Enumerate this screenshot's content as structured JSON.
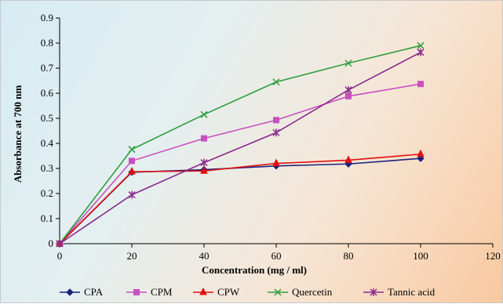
{
  "chart_data": {
    "type": "line",
    "title": "",
    "xlabel": "Concentration (mg / ml)",
    "ylabel": "Absorbance at 700 nm",
    "xlim": [
      0,
      120
    ],
    "ylim": [
      0,
      0.9
    ],
    "x_ticks": [
      "0",
      "20",
      "40",
      "60",
      "80",
      "100",
      "120"
    ],
    "y_ticks": [
      "0",
      "0.1",
      "0.2",
      "0.3",
      "0.4",
      "0.5",
      "0.6",
      "0.7",
      "0.8",
      "0.9"
    ],
    "grid": false,
    "legend_position": "bottom",
    "x": [
      0,
      20,
      40,
      60,
      80,
      100
    ],
    "series": [
      {
        "name": "CPA",
        "color": "#1a237e",
        "marker": "diamond",
        "values": [
          0,
          0.285,
          0.295,
          0.31,
          0.318,
          0.34
        ]
      },
      {
        "name": "CPM",
        "color": "#c850c0",
        "marker": "square",
        "values": [
          0,
          0.33,
          0.42,
          0.493,
          0.588,
          0.637
        ]
      },
      {
        "name": "CPW",
        "color": "#e01010",
        "marker": "triangle",
        "values": [
          0,
          0.287,
          0.29,
          0.32,
          0.333,
          0.357
        ]
      },
      {
        "name": "Quercetin",
        "color": "#2e9e3e",
        "marker": "x",
        "values": [
          0,
          0.376,
          0.515,
          0.645,
          0.72,
          0.79
        ]
      },
      {
        "name": "Tannic acid",
        "color": "#8a2a8e",
        "marker": "star",
        "values": [
          0,
          0.195,
          0.323,
          0.443,
          0.613,
          0.763
        ]
      }
    ]
  }
}
